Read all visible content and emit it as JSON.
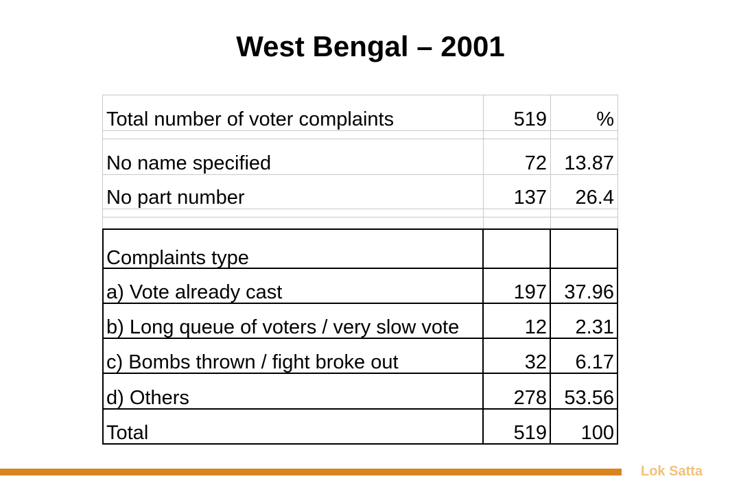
{
  "title": "West Bengal – 2001",
  "table": {
    "header": {
      "label": "Total number of voter complaints",
      "count": "519",
      "percent": "%"
    },
    "rows": [
      {
        "label": "No name specified",
        "count": "72",
        "percent": "13.87"
      },
      {
        "label": "No part number",
        "count": "137",
        "percent": "26.4"
      }
    ],
    "section_label": "Complaints type",
    "types": [
      {
        "label": "a) Vote already cast",
        "count": "197",
        "percent": "37.96"
      },
      {
        "label": "b) Long queue of voters / very slow vote",
        "count": "12",
        "percent": "2.31"
      },
      {
        "label": "c) Bombs thrown / fight broke out",
        "count": "32",
        "percent": "6.17"
      },
      {
        "label": "d) Others",
        "count": "278",
        "percent": "53.56"
      }
    ],
    "total": {
      "label": "Total",
      "count": "519",
      "percent": "100"
    }
  },
  "footer": {
    "brand": "Lok Satta",
    "accent_color": "#d9851c",
    "brand_color": "#f0c178"
  }
}
